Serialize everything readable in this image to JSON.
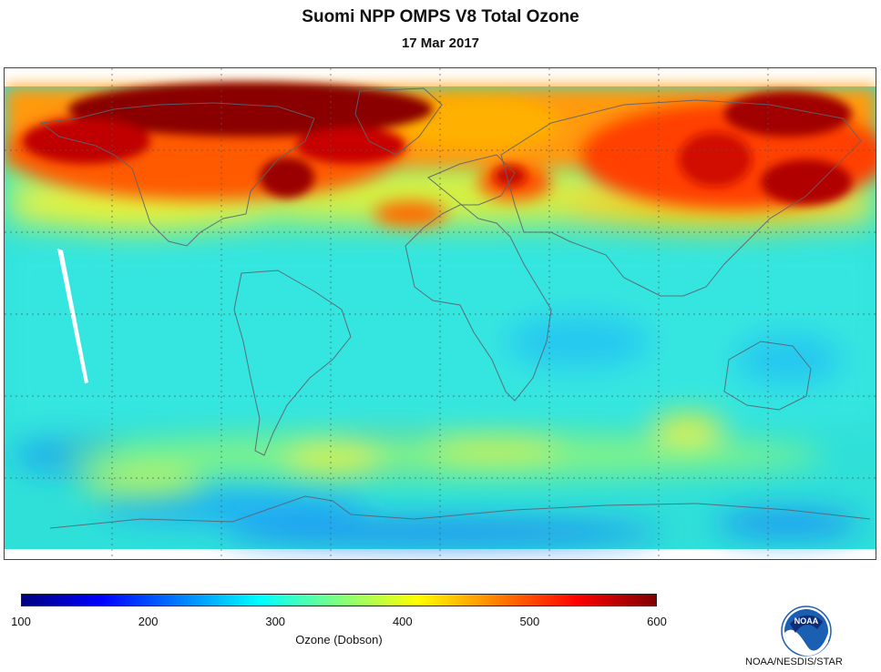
{
  "header": {
    "title": "Suomi NPP OMPS V8 Total Ozone",
    "date": "17 Mar 2017"
  },
  "colorbar": {
    "label": "Ozone (Dobson)",
    "min": 100,
    "max": 600,
    "ticks": [
      "100",
      "200",
      "300",
      "400",
      "500",
      "600"
    ],
    "colors": [
      "#00007f",
      "#0000ff",
      "#007fff",
      "#00ffff",
      "#7fff7f",
      "#ffff00",
      "#ff7f00",
      "#ff0000",
      "#7f0000"
    ]
  },
  "logo": {
    "text": "NOAA",
    "icon": "noaa-logo-icon",
    "colors": {
      "blue": "#1b5fb3",
      "navy": "#0d2d7a",
      "white": "#ffffff"
    }
  },
  "footer": {
    "credit": "NOAA/NESDIS/STAR"
  },
  "map": {
    "projection": "equirectangular",
    "background_color": "#2fe0d9",
    "grid": "dotted"
  }
}
